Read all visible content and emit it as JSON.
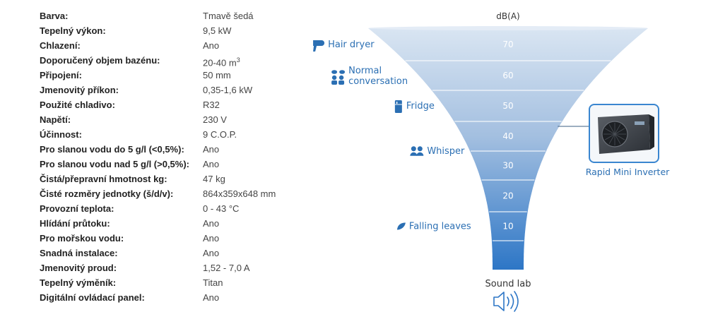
{
  "specs": [
    {
      "label": "Barva:",
      "value": "Tmavě šedá"
    },
    {
      "label": "Tepelný výkon:",
      "value": "9,5 kW"
    },
    {
      "label": "Chlazení:",
      "value": "Ano"
    },
    {
      "label": "Doporučený objem bazénu:",
      "value": "20-40 m",
      "sup": "3"
    },
    {
      "label": "Připojení:",
      "value": "50 mm"
    },
    {
      "label": "Jmenovitý příkon:",
      "value": "0,35-1,6 kW"
    },
    {
      "label": "Použité chladivo:",
      "value": "R32"
    },
    {
      "label": "Napětí:",
      "value": "230 V"
    },
    {
      "label": "Účinnost:",
      "value": "9 C.O.P."
    },
    {
      "label": "Pro slanou vodu do 5 g/l (<0,5%):",
      "value": "Ano"
    },
    {
      "label": "Pro slanou vodu nad 5 g/l (>0,5%):",
      "value": "Ano"
    },
    {
      "label": "Čistá/přepravní hmotnost kg:",
      "value": "47 kg"
    },
    {
      "label": "Čisté rozměry jednotky (š/d/v):",
      "value": "864x359x648 mm"
    },
    {
      "label": "Provozní teplota:",
      "value": "0 - 43 °C"
    },
    {
      "label": "Hlídání průtoku:",
      "value": "Ano"
    },
    {
      "label": "Pro mořskou vodu:",
      "value": "Ano"
    },
    {
      "label": "Snadná instalace:",
      "value": "Ano"
    },
    {
      "label": "Jmenovitý proud:",
      "value": "1,52 - 7,0 A"
    },
    {
      "label": "Tepelný výměník:",
      "value": "Titan"
    },
    {
      "label": "Digitální ovládací panel:",
      "value": "Ano"
    }
  ],
  "sound_chart": {
    "unit": "dB(A)",
    "levels": [
      "70",
      "60",
      "50",
      "40",
      "30",
      "20",
      "10"
    ],
    "references": [
      {
        "label": "Hair dryer",
        "icon": "hair-dryer-icon",
        "db": 70
      },
      {
        "label": "Normal",
        "label2": "conversation",
        "icon": "conversation-icon",
        "db": 60
      },
      {
        "label": "Fridge",
        "icon": "fridge-icon",
        "db": 50
      },
      {
        "label": "Whisper",
        "icon": "whisper-icon",
        "db": 35
      },
      {
        "label": "Falling leaves",
        "icon": "leaf-icon",
        "db": 10
      }
    ],
    "product": {
      "label": "Rapid Mini Inverter",
      "db": 40,
      "icon": "heat-pump-image"
    },
    "footer": "Sound lab",
    "footer_icon": "speaker-icon",
    "colors": {
      "text": "#2b6fb3",
      "funnel_top": "#d7e3f1",
      "funnel_bottom": "#2d76c6",
      "frame": "#3a86d0"
    }
  }
}
